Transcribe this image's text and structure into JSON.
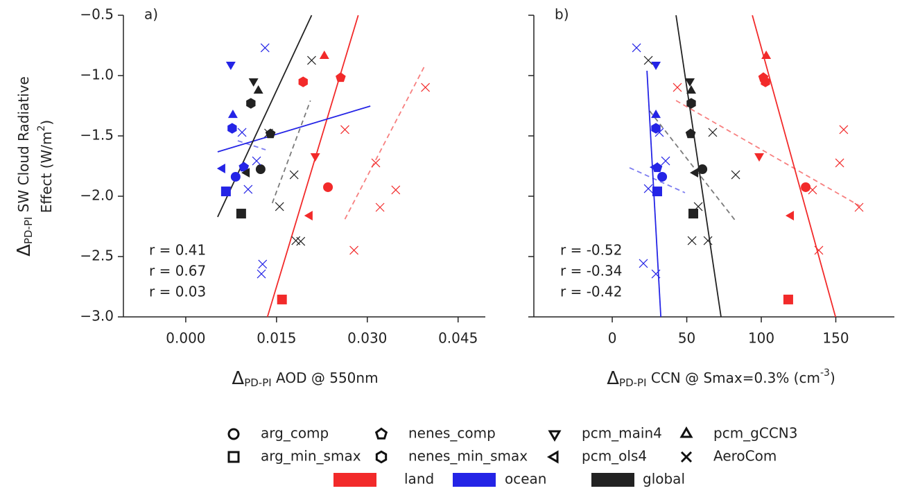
{
  "regions": [
    {
      "name": "land",
      "color": "#f22a2a"
    },
    {
      "name": "ocean",
      "color": "#2424e6"
    },
    {
      "name": "global",
      "color": "#222222"
    }
  ],
  "ylabel": {
    "delta": "Δ",
    "sub": "PD-PI",
    "line1": " SW Cloud Radiative",
    "line2": "Effect (W/m",
    "sup": "2",
    "end": ")"
  },
  "chart_data": [
    {
      "type": "scatter",
      "panel": "a)",
      "xlabel": {
        "delta": "Δ",
        "sub": "PD-PI",
        "text": " AOD @ 550nm"
      },
      "xlim": [
        -0.0103,
        0.0495
      ],
      "ylim": [
        -3.0,
        -0.5
      ],
      "xticks": [
        {
          "value": 0,
          "label": "0.000"
        },
        {
          "value": 0.015,
          "label": "0.015"
        },
        {
          "value": 0.03,
          "label": "0.030"
        },
        {
          "value": 0.045,
          "label": "0.045"
        }
      ],
      "yticks": [
        {
          "value": -0.5,
          "label": "−0.5"
        },
        {
          "value": -1.0,
          "label": "−1.0"
        },
        {
          "value": -1.5,
          "label": "−1.5"
        },
        {
          "value": -2.0,
          "label": "−2.0"
        },
        {
          "value": -2.5,
          "label": "−2.5"
        },
        {
          "value": -3.0,
          "label": "−3.0"
        }
      ],
      "show_ytick_labels": true,
      "series": [
        {
          "name": "arg_comp",
          "marker": "circle",
          "x": [
            [
              0.0235
            ],
            [
              0.00824
            ],
            [
              0.01237
            ]
          ],
          "values": [
            [
              -1.925
            ],
            [
              -1.839
            ],
            [
              -1.776
            ]
          ]
        },
        {
          "name": "nenes_comp",
          "marker": "pentagon",
          "x": [
            [
              0.0256
            ],
            [
              0.0096
            ],
            [
              0.014
            ]
          ],
          "values": [
            [
              -1.017
            ],
            [
              -1.759
            ],
            [
              -1.483
            ]
          ]
        },
        {
          "name": "pcm_main4",
          "marker": "tri-down",
          "x": [
            [
              0.0214
            ],
            [
              0.00744
            ],
            [
              0.0112
            ]
          ],
          "values": [
            [
              -1.667
            ],
            [
              -0.908
            ],
            [
              -1.046
            ]
          ]
        },
        {
          "name": "pcm_gCCN3",
          "marker": "tri-up",
          "x": [
            [
              0.0229
            ],
            [
              0.00779
            ],
            [
              0.012
            ]
          ],
          "values": [
            [
              -0.839
            ],
            [
              -1.328
            ],
            [
              -1.126
            ]
          ]
        },
        {
          "name": "arg_min_smax",
          "marker": "square",
          "x": [
            [
              0.0159
            ],
            [
              0.00664
            ],
            [
              0.00916
            ]
          ],
          "values": [
            [
              -2.856
            ],
            [
              -1.96
            ],
            [
              -2.144
            ]
          ]
        },
        {
          "name": "nenes_min_smax",
          "marker": "hexagon",
          "x": [
            [
              0.0194
            ],
            [
              0.00767
            ],
            [
              0.01076
            ]
          ],
          "values": [
            [
              -1.052
            ],
            [
              -1.437
            ],
            [
              -1.23
            ]
          ]
        },
        {
          "name": "pcm_ols4",
          "marker": "tri-left",
          "x": [
            [
              0.0205
            ],
            [
              0.00607
            ],
            [
              0.0101
            ]
          ],
          "values": [
            [
              -2.161
            ],
            [
              -1.77
            ],
            [
              -1.805
            ]
          ]
        },
        {
          "name": "AeroCom",
          "marker": "x",
          "x": [
            [
              0.0396,
              0.0263,
              0.0314,
              0.0347,
              0.0321,
              0.0278
            ],
            [
              0.0131,
              0.0093,
              0.0117,
              0.0103,
              0.0127,
              0.0125
            ],
            [
              0.0208,
              0.0137,
              0.0179,
              0.0155,
              0.0182,
              0.019
            ]
          ],
          "values": [
            [
              -1.098,
              -1.448,
              -1.724,
              -1.948,
              -2.092,
              -2.448
            ],
            [
              -0.77,
              -1.471,
              -1.707,
              -1.943,
              -2.563,
              -2.644
            ],
            [
              -0.874,
              -1.477,
              -1.822,
              -2.086,
              -2.368,
              -2.374
            ]
          ]
        }
      ],
      "fits": [
        {
          "color": "#f22a2a",
          "style": "solid",
          "x": [
            0.0135,
            0.0285
          ],
          "values": [
            -3.0,
            -0.5
          ]
        },
        {
          "color": "#2424e6",
          "style": "solid",
          "x": [
            0.00527,
            0.0305
          ],
          "values": [
            -1.632,
            -1.253
          ]
        },
        {
          "color": "#222222",
          "style": "solid",
          "x": [
            0.00527,
            0.0208
          ],
          "values": [
            -2.172,
            -0.5
          ]
        },
        {
          "color": "#f22a2a",
          "style": "dashed",
          "x": [
            0.0263,
            0.0396
          ],
          "values": [
            -2.19,
            -0.908
          ]
        },
        {
          "color": "#2424e6",
          "style": "dashed",
          "x": [
            0.0086,
            0.0132
          ],
          "values": [
            -1.54,
            -1.615
          ]
        },
        {
          "color": "#222222",
          "style": "dashed",
          "x": [
            0.0143,
            0.0206
          ],
          "values": [
            -2.057,
            -1.207
          ]
        }
      ],
      "annotations": [
        {
          "text": "r = 0.41",
          "color": "#111111"
        },
        {
          "text": "r = 0.67",
          "color": "#f22a2a"
        },
        {
          "text": "r = 0.03",
          "color": "#2424e6"
        }
      ]
    },
    {
      "type": "scatter",
      "panel": "b)",
      "xlabel": {
        "delta": "Δ",
        "sub": "PD-PI",
        "text": " CCN @ Smax=0.3% (cm",
        "sup": "-3",
        "end": ")"
      },
      "xlim": [
        -52.6,
        189.3
      ],
      "ylim": [
        -3.0,
        -0.5
      ],
      "xticks": [
        0,
        50,
        100,
        150
      ],
      "yticks": [
        -0.5,
        -1.0,
        -1.5,
        -2.0,
        -2.5,
        -3.0
      ],
      "show_ytick_labels": false,
      "series": [
        {
          "name": "arg_comp",
          "marker": "circle",
          "x": [
            [
              129.8
            ],
            [
              33.5
            ],
            [
              60.5
            ]
          ],
          "values": [
            [
              -1.925
            ],
            [
              -1.839
            ],
            [
              -1.776
            ]
          ]
        },
        {
          "name": "nenes_comp",
          "marker": "pentagon",
          "x": [
            [
              101.4
            ],
            [
              30.2
            ],
            [
              52.6
            ]
          ],
          "values": [
            [
              -1.017
            ],
            [
              -1.764
            ],
            [
              -1.483
            ]
          ]
        },
        {
          "name": "pcm_main4",
          "marker": "tri-down",
          "x": [
            [
              98.6
            ],
            [
              29.3
            ],
            [
              52.1
            ]
          ],
          "values": [
            [
              -1.667
            ],
            [
              -0.908
            ],
            [
              -1.046
            ]
          ]
        },
        {
          "name": "pcm_gCCN3",
          "marker": "tri-up",
          "x": [
            [
              103.3
            ],
            [
              29.3
            ],
            [
              53.0
            ]
          ],
          "values": [
            [
              -0.839
            ],
            [
              -1.328
            ],
            [
              -1.126
            ]
          ]
        },
        {
          "name": "arg_min_smax",
          "marker": "square",
          "x": [
            [
              118.1
            ],
            [
              30.2
            ],
            [
              54.4
            ]
          ],
          "values": [
            [
              -2.856
            ],
            [
              -1.96
            ],
            [
              -2.144
            ]
          ]
        },
        {
          "name": "nenes_min_smax",
          "marker": "hexagon",
          "x": [
            [
              102.8
            ],
            [
              29.3
            ],
            [
              53.0
            ]
          ],
          "values": [
            [
              -1.052
            ],
            [
              -1.437
            ],
            [
              -1.23
            ]
          ]
        },
        {
          "name": "pcm_ols4",
          "marker": "tri-left",
          "x": [
            [
              120.0
            ],
            [
              28.8
            ],
            [
              55.8
            ]
          ],
          "values": [
            [
              -2.161
            ],
            [
              -1.759
            ],
            [
              -1.805
            ]
          ]
        },
        {
          "name": "AeroCom",
          "marker": "x",
          "x": [
            [
              43.7,
              155.3,
              152.6,
              134.4,
              165.6,
              138.6
            ],
            [
              16.3,
              31.6,
              35.8,
              24.2,
              20.9,
              29.3
            ],
            [
              24.2,
              67.4,
              82.8,
              57.7,
              53.5,
              64.2
            ]
          ],
          "values": [
            [
              -1.098,
              -1.448,
              -1.724,
              -1.948,
              -2.092,
              -2.448
            ],
            [
              -0.77,
              -1.471,
              -1.707,
              -1.937,
              -2.557,
              -2.644
            ],
            [
              -0.874,
              -1.471,
              -1.822,
              -2.086,
              -2.368,
              -2.368
            ]
          ]
        }
      ],
      "fits": [
        {
          "color": "#f22a2a",
          "style": "solid",
          "x": [
            94.0,
            149.8
          ],
          "values": [
            -0.5,
            -3.0
          ]
        },
        {
          "color": "#2424e6",
          "style": "solid",
          "x": [
            23.3,
            32.6
          ],
          "values": [
            -0.96,
            -3.0
          ]
        },
        {
          "color": "#222222",
          "style": "solid",
          "x": [
            42.8,
            73.0
          ],
          "values": [
            -0.5,
            -3.0
          ]
        },
        {
          "color": "#f22a2a",
          "style": "dashed",
          "x": [
            42.8,
            166.0
          ],
          "values": [
            -1.207,
            -2.08
          ]
        },
        {
          "color": "#2424e6",
          "style": "dashed",
          "x": [
            11.6,
            48.8
          ],
          "values": [
            -1.764,
            -1.971
          ]
        },
        {
          "color": "#222222",
          "style": "dashed",
          "x": [
            25.1,
            83.3
          ],
          "values": [
            -1.293,
            -2.213
          ]
        }
      ],
      "annotations": [
        {
          "text": "r = -0.52",
          "color": "#111111"
        },
        {
          "text": "r = -0.34",
          "color": "#f22a2a"
        },
        {
          "text": "r = -0.42",
          "color": "#2424e6"
        }
      ]
    }
  ]
}
